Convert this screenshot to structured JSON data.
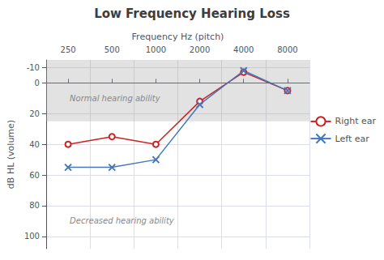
{
  "chart_data": {
    "type": "line",
    "title": "Low Frequency Hearing Loss",
    "xlabel": "Frequency Hz (pitch)",
    "ylabel": "dB HL (volume)",
    "categories": [
      "250",
      "500",
      "1000",
      "2000",
      "4000",
      "8000"
    ],
    "series": [
      {
        "name": "Right ear",
        "color": "#cc2222",
        "marker": "circle",
        "values": [
          40,
          35,
          40,
          12,
          -7,
          5
        ]
      },
      {
        "name": "Left ear",
        "color": "#4477bb",
        "marker": "x",
        "values": [
          55,
          55,
          50,
          14,
          -8,
          5
        ]
      }
    ],
    "ylim": [
      108,
      -15
    ],
    "yticks": [
      -10,
      0,
      20,
      40,
      60,
      80,
      100
    ],
    "normal_band": [
      -15,
      25
    ],
    "annotations": [
      {
        "text": "Normal hearing ability",
        "y": 10
      },
      {
        "text": "Decreased hearing ability",
        "y": 90
      }
    ],
    "grid": true,
    "legend": "right"
  }
}
